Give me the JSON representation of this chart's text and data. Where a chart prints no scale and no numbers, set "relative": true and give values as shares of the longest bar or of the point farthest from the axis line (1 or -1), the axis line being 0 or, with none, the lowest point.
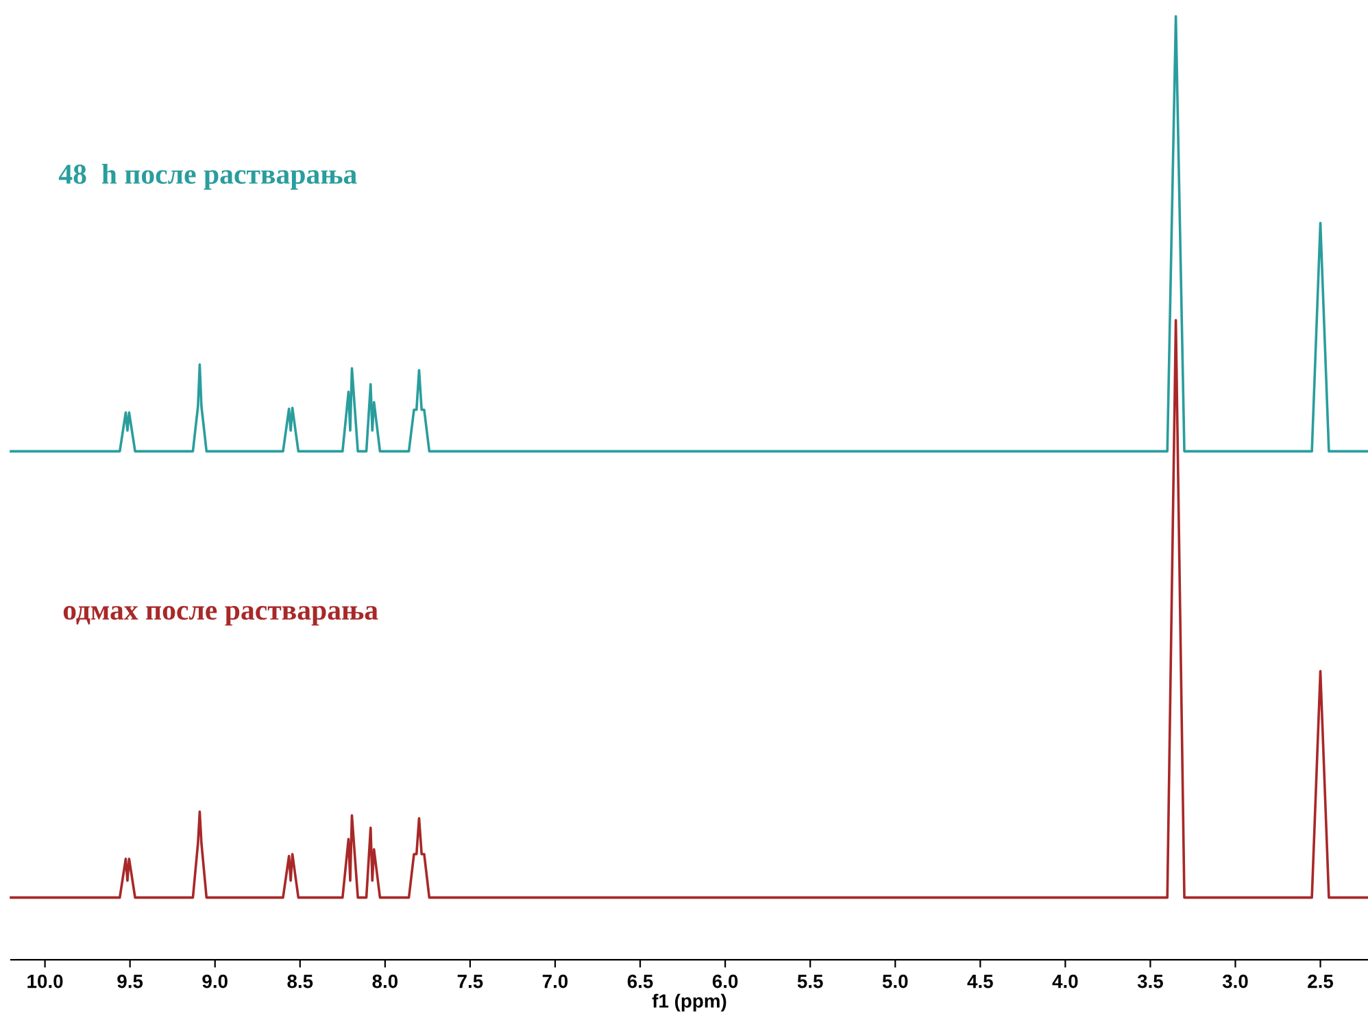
{
  "chart_data": {
    "type": "line",
    "relative": true,
    "xlabel": "f1 (ppm)",
    "xlim": [
      10.2,
      2.22
    ],
    "xticks": [
      {
        "value": 10.0,
        "label": "10.0"
      },
      {
        "value": 9.5,
        "label": "9.5"
      },
      {
        "value": 9.0,
        "label": "9.0"
      },
      {
        "value": 8.5,
        "label": "8.5"
      },
      {
        "value": 8.0,
        "label": "8.0"
      },
      {
        "value": 7.5,
        "label": "7.5"
      },
      {
        "value": 7.0,
        "label": "7.0"
      },
      {
        "value": 6.5,
        "label": "6.5"
      },
      {
        "value": 6.0,
        "label": "6.0"
      },
      {
        "value": 5.5,
        "label": "5.5"
      },
      {
        "value": 5.0,
        "label": "5.0"
      },
      {
        "value": 4.5,
        "label": "4.5"
      },
      {
        "value": 4.0,
        "label": "4.0"
      },
      {
        "value": 3.5,
        "label": "3.5"
      },
      {
        "value": 3.0,
        "label": "3.0"
      },
      {
        "value": 2.5,
        "label": "2.5"
      }
    ],
    "tick_labels": "x",
    "grid": false,
    "legend": false,
    "marker": "none",
    "line_style": "solid",
    "x": [
      10.2,
      9.56,
      9.525,
      9.515,
      9.505,
      9.47,
      9.13,
      9.1,
      9.09,
      9.08,
      9.05,
      8.6,
      8.565,
      8.555,
      8.545,
      8.51,
      8.25,
      8.215,
      8.205,
      8.195,
      8.16,
      8.11,
      8.085,
      8.075,
      8.065,
      8.03,
      7.86,
      7.83,
      7.815,
      7.8,
      7.785,
      7.77,
      7.74,
      3.4,
      3.35,
      3.3,
      2.55,
      2.5,
      2.45,
      2.22
    ],
    "series": [
      {
        "name": "48  h после растварања",
        "color": "#2a9d9d",
        "values": [
          0.539,
          0.539,
          0.58,
          0.561,
          0.58,
          0.539,
          0.539,
          0.587,
          0.631,
          0.587,
          0.539,
          0.539,
          0.584,
          0.561,
          0.585,
          0.539,
          0.539,
          0.602,
          0.561,
          0.627,
          0.539,
          0.539,
          0.61,
          0.561,
          0.591,
          0.539,
          0.539,
          0.583,
          0.583,
          0.625,
          0.583,
          0.583,
          0.539,
          0.539,
          1.0,
          0.539,
          0.539,
          0.781,
          0.539,
          0.539
        ]
      },
      {
        "name": "одмах после растварања",
        "color": "#a82828",
        "values": [
          0.066,
          0.066,
          0.107,
          0.084,
          0.107,
          0.066,
          0.066,
          0.124,
          0.157,
          0.124,
          0.066,
          0.066,
          0.11,
          0.084,
          0.112,
          0.066,
          0.066,
          0.128,
          0.084,
          0.153,
          0.066,
          0.066,
          0.14,
          0.084,
          0.117,
          0.066,
          0.066,
          0.112,
          0.112,
          0.15,
          0.112,
          0.112,
          0.066,
          0.066,
          0.678,
          0.066,
          0.066,
          0.306,
          0.066,
          0.066
        ]
      }
    ]
  }
}
